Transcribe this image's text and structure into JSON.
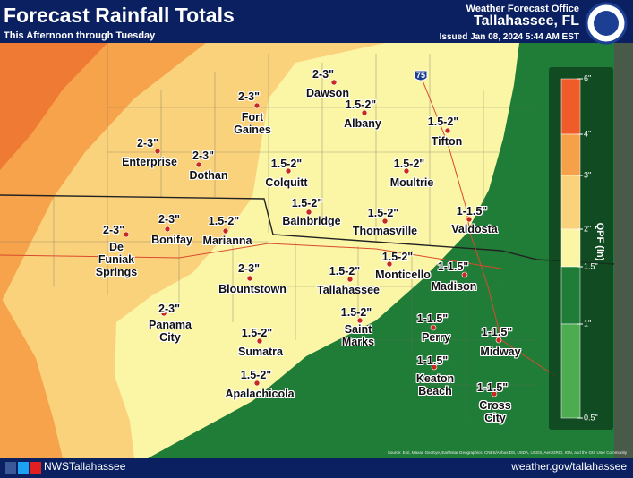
{
  "header": {
    "title": "Forecast Rainfall Totals",
    "subtitle": "This Afternoon through Tuesday",
    "office": "Weather Forecast Office",
    "location": "Tallahassee, FL",
    "issued": "Issued Jan 08, 2024 5:44 AM EST"
  },
  "legend": {
    "title": "QPF (in)",
    "labels": [
      "6\"",
      "4\"",
      "3\"",
      "2\"",
      "1.5\"",
      "1\"",
      "0.5\""
    ],
    "colors": [
      "#ef5b29",
      "#f6a04a",
      "#fbd27c",
      "#fbf5a6",
      "#1f7d37",
      "#4dab50"
    ]
  },
  "highway": "75",
  "cities": [
    {
      "amount": "2-3\"",
      "name": "Dawson"
    },
    {
      "amount": "1.5-2\"",
      "name": "Albany"
    },
    {
      "amount": "2-3\"",
      "name": "Fort\nGaines"
    },
    {
      "amount": "1.5-2\"",
      "name": "Tifton"
    },
    {
      "amount": "2-3\"",
      "name": "Enterprise"
    },
    {
      "amount": "2-3\"",
      "name": "Dothan"
    },
    {
      "amount": "1.5-2\"",
      "name": "Colquitt"
    },
    {
      "amount": "1.5-2\"",
      "name": "Moultrie"
    },
    {
      "amount": "1.5-2\"",
      "name": "Bainbridge"
    },
    {
      "amount": "1.5-2\"",
      "name": "Thomasville"
    },
    {
      "amount": "1-1.5\"",
      "name": "Valdosta"
    },
    {
      "amount": "2-3\"",
      "name": "De\nFuniak\nSprings"
    },
    {
      "amount": "2-3\"",
      "name": "Bonifay"
    },
    {
      "amount": "1.5-2\"",
      "name": "Marianna"
    },
    {
      "amount": "1.5-2\"",
      "name": "Monticello"
    },
    {
      "amount": "1.5-2\"",
      "name": "Tallahassee"
    },
    {
      "amount": "1-1.5\"",
      "name": "Madison"
    },
    {
      "amount": "2-3\"",
      "name": "Blountstown"
    },
    {
      "amount": "2-3\"",
      "name": "Panama\nCity"
    },
    {
      "amount": "1.5-2\"",
      "name": "Saint\nMarks"
    },
    {
      "amount": "1-1.5\"",
      "name": "Perry"
    },
    {
      "amount": "1-1.5\"",
      "name": "Midway"
    },
    {
      "amount": "1.5-2\"",
      "name": "Sumatra"
    },
    {
      "amount": "1-1.5\"",
      "name": "Keaton\nBeach"
    },
    {
      "amount": "1.5-2\"",
      "name": "Apalachicola"
    },
    {
      "amount": "1-1.5\"",
      "name": "Cross\nCity"
    }
  ],
  "footer": {
    "social": "NWSTallahassee",
    "url": "weather.gov/tallahassee",
    "source": "Source: Esri, Maxar, GeoEye, Earthstar Geographics, CNES/Airbus DS, USDA, USGS, AeroGRID, IGN, and the GIS User Community"
  }
}
